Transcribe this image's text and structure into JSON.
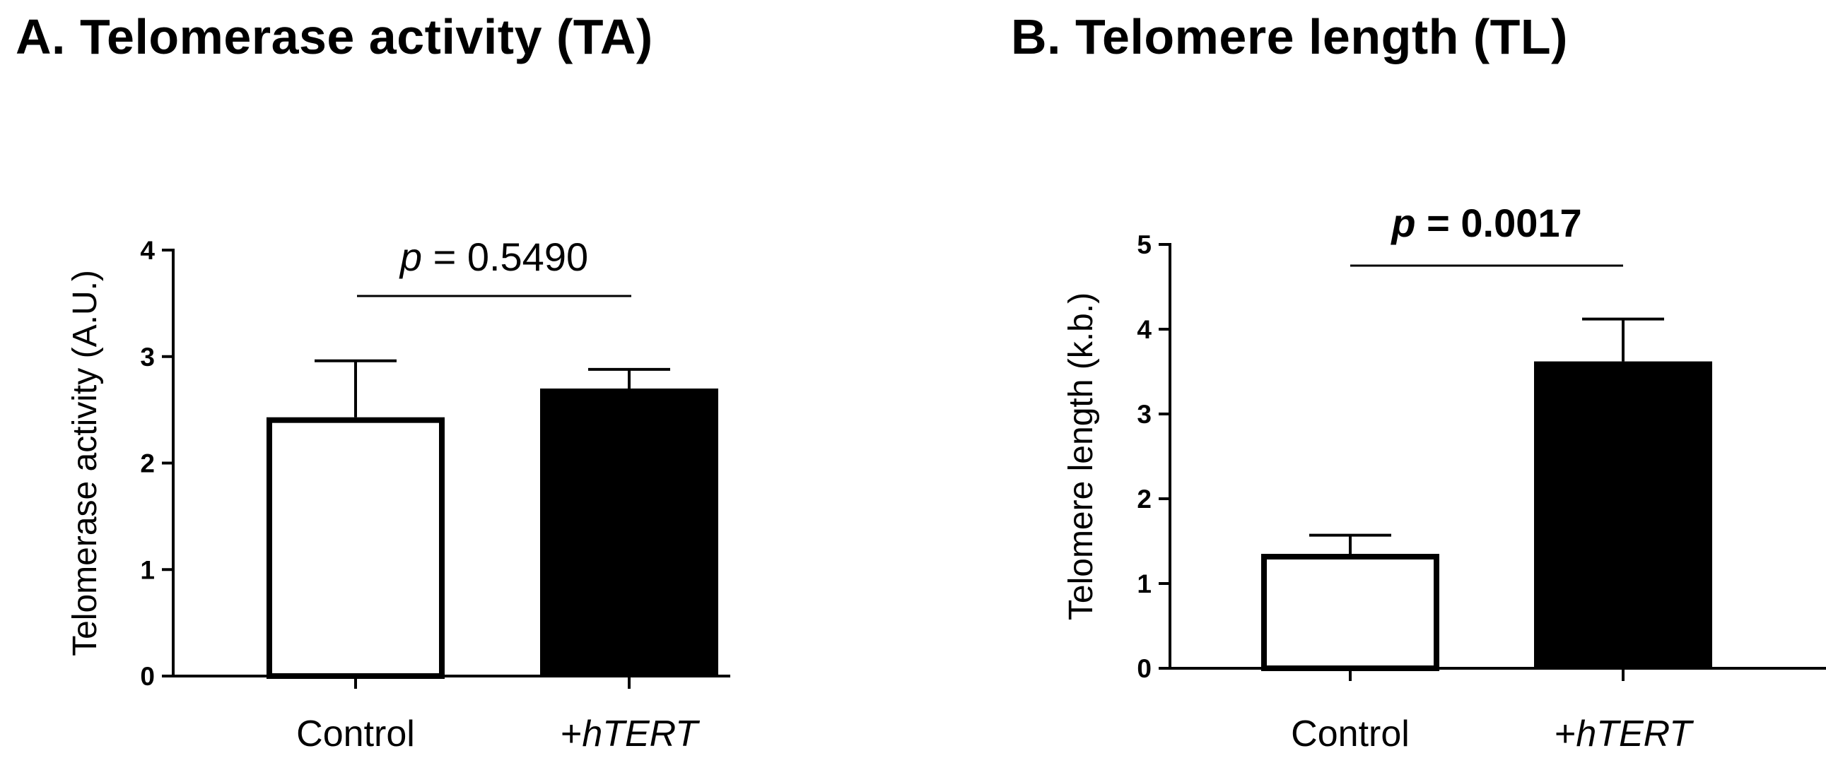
{
  "chart_data": [
    {
      "type": "bar",
      "title": "A. Telomerase activity (TA)",
      "ylabel": "Telomerase activity (A.U.)",
      "xlabel": "",
      "ylim": [
        0,
        4
      ],
      "yticks": [
        "0",
        "1",
        "2",
        "3",
        "4"
      ],
      "categories": [
        "Control",
        "+hTERT"
      ],
      "category_parts": [
        {
          "prefix": "Control",
          "italic": ""
        },
        {
          "prefix": "+",
          "italic": "hTERT"
        }
      ],
      "values": [
        2.43,
        2.7
      ],
      "errors": [
        0.53,
        0.18
      ],
      "fills": [
        "#ffffff",
        "#000000"
      ],
      "annotation": {
        "p_symbol": "p",
        "text": " = 0.5490",
        "bold": false
      }
    },
    {
      "type": "bar",
      "title": "B. Telomere length (TL)",
      "ylabel": "Telomere length (k.b.)",
      "xlabel": "",
      "ylim": [
        0,
        5
      ],
      "yticks": [
        "0",
        "1",
        "2",
        "3",
        "4",
        "5"
      ],
      "categories": [
        "Control",
        "+hTERT"
      ],
      "category_parts": [
        {
          "prefix": "Control",
          "italic": ""
        },
        {
          "prefix": "+",
          "italic": "hTERT"
        }
      ],
      "values": [
        1.35,
        3.62
      ],
      "errors": [
        0.22,
        0.5
      ],
      "fills": [
        "#ffffff",
        "#000000"
      ],
      "annotation": {
        "p_symbol": "p",
        "text": " = 0.0017",
        "bold": true
      }
    }
  ]
}
